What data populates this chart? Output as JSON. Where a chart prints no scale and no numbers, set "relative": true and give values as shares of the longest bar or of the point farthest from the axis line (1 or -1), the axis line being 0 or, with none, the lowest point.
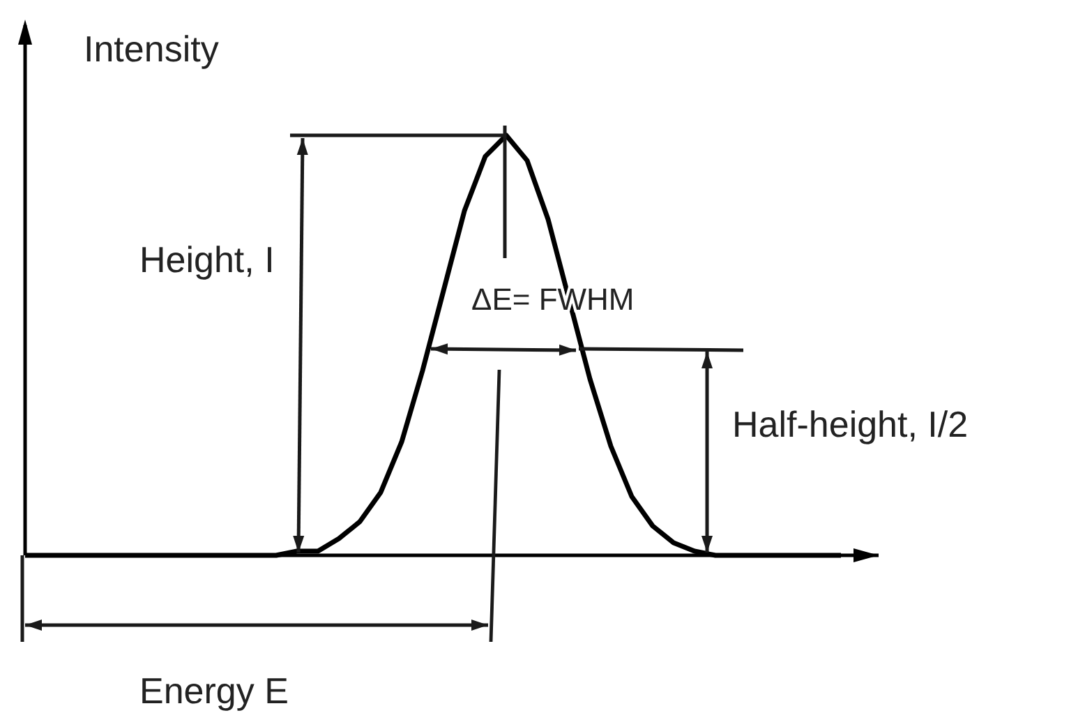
{
  "chart_data": {
    "type": "line",
    "relative": true,
    "xlabel": "Energy E",
    "ylabel": "Intensity",
    "annotations": [
      "Height, I",
      "ΔE= FWHM",
      "Half-height, I/2"
    ],
    "categories": [
      null,
      null,
      null,
      null,
      null,
      null,
      null,
      null,
      null,
      null,
      null,
      null,
      null,
      null,
      null,
      null,
      null,
      null,
      null,
      null,
      null,
      null,
      null,
      null,
      null,
      null,
      null,
      null,
      null,
      null,
      null,
      null,
      null,
      null,
      null,
      null,
      null,
      null,
      null,
      null
    ],
    "series": [
      {
        "color": "#000000",
        "values": [
          0,
          0,
          0,
          0,
          0,
          0,
          0,
          0,
          0,
          0,
          0,
          0,
          0,
          0.01,
          0.01,
          0.04,
          0.08,
          0.15,
          0.27,
          0.44,
          0.63,
          0.82,
          0.95,
          1,
          0.94,
          0.8,
          0.61,
          0.42,
          0.26,
          0.14,
          0.07,
          0.03,
          0.01,
          0,
          0,
          0,
          0,
          0,
          0,
          0
        ]
      }
    ]
  }
}
